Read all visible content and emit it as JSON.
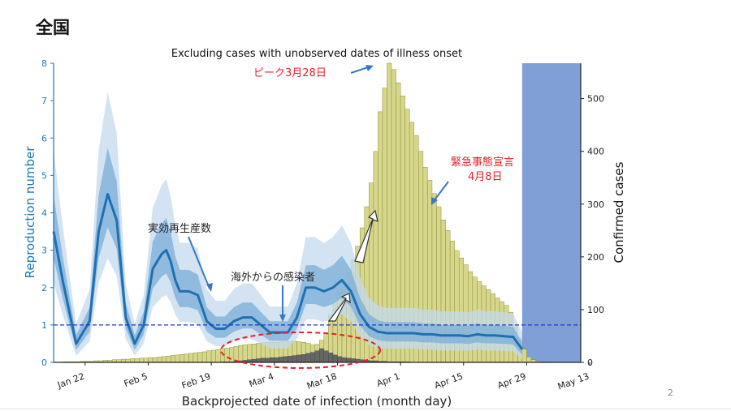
{
  "slide": {
    "title": "全国",
    "page_number": "2"
  },
  "chart_data": {
    "type": "bar",
    "title": "Excluding cases with unobserved dates of illness onset",
    "xlabel": "Backprojected date of infection (month day)",
    "ylabel_left": "Reproduction number",
    "ylabel_right": "Confirmed cases",
    "x_ticks": [
      "Jan 22",
      "Feb 5",
      "Feb 19",
      "Mar 4",
      "Mar 18",
      "Apr 1",
      "Apr 15",
      "Apr 29",
      "May 13"
    ],
    "y_left_ticks": [
      "0",
      "1",
      "2",
      "3",
      "4",
      "5",
      "6",
      "7",
      "8"
    ],
    "y_right_ticks": [
      "0",
      "100",
      "200",
      "300",
      "400",
      "500"
    ],
    "y_left_range": [
      0,
      8
    ],
    "y_right_range": [
      0,
      567
    ],
    "x_range_days": [
      0,
      117
    ],
    "start_date": "Jan 15",
    "reference_line_R": 1,
    "shaded_region_days": [
      104,
      117
    ],
    "series": [
      {
        "name": "Confirmed cases",
        "start_day": 0,
        "values": [
          0,
          0,
          1,
          1,
          1,
          1,
          2,
          2,
          2,
          3,
          3,
          4,
          4,
          5,
          5,
          6,
          6,
          7,
          7,
          8,
          8,
          9,
          9,
          10,
          11,
          12,
          13,
          14,
          15,
          16,
          17,
          18,
          19,
          20,
          22,
          23,
          24,
          26,
          27,
          28,
          30,
          32,
          33,
          34,
          35,
          36,
          37,
          38,
          38,
          38,
          39,
          39,
          40,
          40,
          39,
          38,
          36,
          33,
          34,
          42,
          56,
          90,
          115,
          140,
          150,
          170,
          195,
          220,
          255,
          295,
          340,
          400,
          475,
          520,
          567,
          555,
          530,
          505,
          480,
          455,
          430,
          400,
          370,
          345,
          320,
          295,
          270,
          250,
          230,
          212,
          198,
          185,
          172,
          162,
          153,
          145,
          138,
          130,
          122,
          115,
          108,
          95,
          70,
          45,
          25,
          10,
          5,
          2,
          1,
          1,
          0
        ]
      },
      {
        "name": "Imported cases",
        "start_day": 0,
        "values": [
          0,
          0,
          0,
          0,
          0,
          0,
          0,
          0,
          0,
          0,
          0,
          0,
          0,
          0,
          0,
          0,
          0,
          0,
          0,
          0,
          0,
          0,
          0,
          0,
          0,
          0,
          0,
          0,
          0,
          0,
          0,
          0,
          0,
          0,
          0,
          0,
          0,
          1,
          1,
          1,
          2,
          3,
          4,
          5,
          6,
          7,
          8,
          8,
          9,
          9,
          10,
          11,
          12,
          13,
          14,
          15,
          17,
          19,
          22,
          26,
          22,
          18,
          14,
          11,
          9,
          8,
          7,
          6,
          5,
          4,
          3,
          3,
          2,
          2,
          1,
          1,
          1,
          1,
          1,
          0,
          0,
          0,
          0,
          0,
          0,
          0,
          0,
          0,
          0,
          0,
          0,
          0,
          0,
          0,
          0,
          0,
          0,
          0,
          0,
          0,
          0,
          0,
          0,
          0,
          0,
          0,
          0,
          0,
          0,
          0,
          0
        ]
      },
      {
        "name": "実効再生産数",
        "x_days": [
          0,
          2,
          5,
          8,
          10,
          12,
          14,
          16,
          18,
          20,
          22,
          24,
          25,
          26,
          27,
          28,
          30,
          32,
          34,
          36,
          38,
          40,
          42,
          44,
          46,
          48,
          50,
          52,
          54,
          56,
          58,
          60,
          62,
          64,
          66,
          68,
          70,
          72,
          74,
          76,
          78,
          80,
          82,
          84,
          86,
          88,
          90,
          92,
          94,
          96,
          98,
          100,
          102,
          104
        ],
        "values": [
          3.5,
          2.2,
          0.5,
          1.1,
          3.5,
          4.5,
          3.8,
          1.2,
          0.5,
          1.0,
          2.5,
          2.9,
          3.0,
          2.7,
          2.2,
          1.9,
          1.9,
          1.8,
          1.1,
          0.9,
          0.9,
          1.1,
          1.2,
          1.2,
          1.0,
          0.8,
          0.8,
          0.8,
          1.2,
          2.0,
          2.0,
          1.9,
          2.0,
          2.2,
          1.9,
          1.3,
          0.95,
          0.82,
          0.78,
          0.78,
          0.78,
          0.78,
          0.75,
          0.75,
          0.72,
          0.72,
          0.72,
          0.7,
          0.75,
          0.72,
          0.72,
          0.7,
          0.68,
          0.35
        ]
      }
    ]
  },
  "annotations": {
    "peak": "ピーク3月28日",
    "emergency_line1": "緊急事態宣言",
    "emergency_line2": "4月8日",
    "effective_r": "実効再生産数",
    "imported": "海外からの感染者"
  }
}
